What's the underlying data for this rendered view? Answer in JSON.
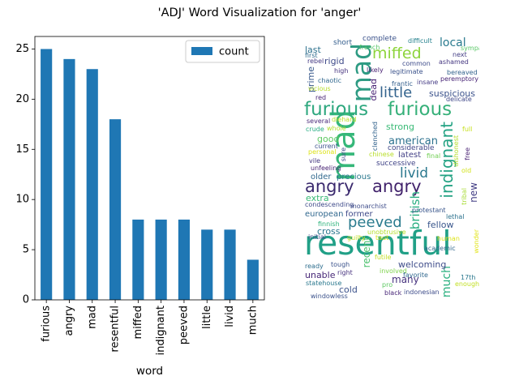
{
  "figure": {
    "title": "'ADJ' Word Visualization for 'anger'"
  },
  "chart_data": {
    "type": "bar",
    "title": "'ADJ' Word Visualization for 'anger'",
    "categories": [
      "furious",
      "angry",
      "mad",
      "resentful",
      "miffed",
      "indignant",
      "peeved",
      "little",
      "livid",
      "much"
    ],
    "series": [
      {
        "name": "count",
        "values": [
          25,
          24,
          23,
          18,
          8,
          8,
          8,
          7,
          7,
          4
        ],
        "color": "#1f77b4"
      }
    ],
    "xlabel": "word",
    "ylabel": "",
    "ylim": [
      0,
      26.25
    ],
    "yticks": [
      0,
      5,
      10,
      15,
      20,
      25
    ],
    "legend": {
      "position": "top-right",
      "label": "count"
    }
  },
  "wordcloud": {
    "words": [
      {
        "text": "resentful",
        "color": "#21a087"
      },
      {
        "text": "mad",
        "color": "#35b779"
      },
      {
        "text": "mad",
        "color": "#2e9b83"
      },
      {
        "text": "furious",
        "color": "#2fa87f"
      },
      {
        "text": "furious",
        "color": "#36b079"
      },
      {
        "text": "angry",
        "color": "#3b2a6e"
      },
      {
        "text": "angry",
        "color": "#41226b"
      },
      {
        "text": "indignant",
        "color": "#23a283"
      },
      {
        "text": "miffed",
        "color": "#8dd43c"
      },
      {
        "text": "little",
        "color": "#33638d"
      },
      {
        "text": "peeved",
        "color": "#2a7b8e"
      },
      {
        "text": "livid",
        "color": "#2b788e"
      },
      {
        "text": "british",
        "color": "#28ae80"
      },
      {
        "text": "much",
        "color": "#2ab07f"
      },
      {
        "text": "american",
        "color": "#2c718e"
      },
      {
        "text": "local",
        "color": "#297a8e"
      },
      {
        "text": "suspicious",
        "color": "#3b528b"
      },
      {
        "text": "dead",
        "color": "#482475"
      },
      {
        "text": "prime",
        "color": "#38598c"
      },
      {
        "text": "last",
        "color": "#2d718e"
      },
      {
        "text": "rigid",
        "color": "#3e4a89"
      },
      {
        "text": "short",
        "color": "#355f8d"
      },
      {
        "text": "complete",
        "color": "#3b528b"
      },
      {
        "text": "difficult",
        "color": "#26828e"
      },
      {
        "text": "good",
        "color": "#5ec962"
      },
      {
        "text": "strong",
        "color": "#3aba76"
      },
      {
        "text": "european",
        "color": "#31688e"
      },
      {
        "text": "former",
        "color": "#3e4989"
      },
      {
        "text": "cross",
        "color": "#2a768e"
      },
      {
        "text": "recent",
        "color": "#4ac16d"
      },
      {
        "text": "many",
        "color": "#46327e"
      },
      {
        "text": "extra",
        "color": "#3aba76"
      },
      {
        "text": "older",
        "color": "#31688e"
      },
      {
        "text": "precious",
        "color": "#2a788e"
      },
      {
        "text": "new",
        "color": "#433e85"
      },
      {
        "text": "fellow",
        "color": "#39568c"
      },
      {
        "text": "unable",
        "color": "#482878"
      },
      {
        "text": "cold",
        "color": "#3b528b"
      },
      {
        "text": "welcoming",
        "color": "#3e4c8a"
      },
      {
        "text": "latest",
        "color": "#423f85"
      },
      {
        "text": "successive",
        "color": "#414487"
      },
      {
        "text": "considerable",
        "color": "#404688"
      },
      {
        "text": "chaotic",
        "color": "#31688e"
      },
      {
        "text": "red",
        "color": "#482576"
      },
      {
        "text": "high",
        "color": "#46337f"
      },
      {
        "text": "rebel",
        "color": "#443983"
      },
      {
        "text": "first",
        "color": "#2f6c8e"
      },
      {
        "text": "french",
        "color": "#56c667"
      },
      {
        "text": "likely",
        "color": "#482173"
      },
      {
        "text": "legitimate",
        "color": "#3b528b"
      },
      {
        "text": "frantic",
        "color": "#35608d"
      },
      {
        "text": "insane",
        "color": "#443b84"
      },
      {
        "text": "common",
        "color": "#3e4c8a"
      },
      {
        "text": "ashamed",
        "color": "#453781"
      },
      {
        "text": "sympathetic",
        "color": "#58c765"
      },
      {
        "text": "next",
        "color": "#433d84"
      },
      {
        "text": "bereaved",
        "color": "#33638d"
      },
      {
        "text": "peremptory",
        "color": "#482576"
      },
      {
        "text": "delicate",
        "color": "#3f4889"
      },
      {
        "text": "vicious",
        "color": "#b8de29"
      },
      {
        "text": "several",
        "color": "#482979"
      },
      {
        "text": "whole",
        "color": "#b5de2b"
      },
      {
        "text": "diehard",
        "color": "#bddf26"
      },
      {
        "text": "crude",
        "color": "#25ac82"
      },
      {
        "text": "current",
        "color": "#3b528b"
      },
      {
        "text": "personal",
        "color": "#dde318"
      },
      {
        "text": "vile",
        "color": "#453781"
      },
      {
        "text": "unfeeling",
        "color": "#482374"
      },
      {
        "text": "sure",
        "color": "#3e4a89"
      },
      {
        "text": "clenched",
        "color": "#33638d"
      },
      {
        "text": "chinese",
        "color": "#b8de29"
      },
      {
        "text": "final",
        "color": "#73d056"
      },
      {
        "text": "dishonest",
        "color": "#b5de2b"
      },
      {
        "text": "full",
        "color": "#c8e020"
      },
      {
        "text": "free",
        "color": "#482173"
      },
      {
        "text": "old",
        "color": "#d2e21b"
      },
      {
        "text": "tribal",
        "color": "#a8db34"
      },
      {
        "text": "condescending",
        "color": "#3e4a89"
      },
      {
        "text": "monarchist",
        "color": "#3e4c8a"
      },
      {
        "text": "protestant",
        "color": "#39568c"
      },
      {
        "text": "lethal",
        "color": "#2c728e"
      },
      {
        "text": "finnish",
        "color": "#2fb47c"
      },
      {
        "text": "guilty",
        "color": "#c2df23"
      },
      {
        "text": "taut",
        "color": "#d8e219"
      },
      {
        "text": "unobtrusive",
        "color": "#b5de2b"
      },
      {
        "text": "human",
        "color": "#dde318"
      },
      {
        "text": "wonder",
        "color": "#e2e418"
      },
      {
        "text": "ready",
        "color": "#2e6e8e"
      },
      {
        "text": "tough",
        "color": "#3b528b"
      },
      {
        "text": "right",
        "color": "#46327e"
      },
      {
        "text": "involved",
        "color": "#7fd34e"
      },
      {
        "text": "favorite",
        "color": "#31688e"
      },
      {
        "text": "17th",
        "color": "#2a788e"
      },
      {
        "text": "enough",
        "color": "#c2df23"
      },
      {
        "text": "statehouse",
        "color": "#2a788e"
      },
      {
        "text": "initial",
        "color": "#3e4a89"
      },
      {
        "text": "futile",
        "color": "#c2df23"
      },
      {
        "text": "academic",
        "color": "#31688e"
      },
      {
        "text": "pro",
        "color": "#5ec962"
      },
      {
        "text": "windowless",
        "color": "#3b528b"
      },
      {
        "text": "black",
        "color": "#482677"
      },
      {
        "text": "indonesian",
        "color": "#3e4c8a"
      }
    ]
  }
}
